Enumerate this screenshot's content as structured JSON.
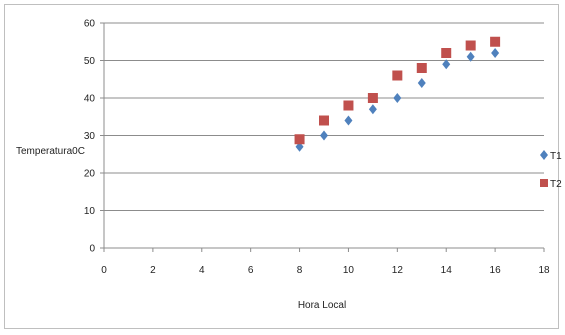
{
  "chart_data": {
    "type": "scatter",
    "title": "",
    "xlabel": "Hora Local",
    "ylabel": "Temperatura0C",
    "xlim": [
      0,
      18
    ],
    "ylim": [
      0,
      60
    ],
    "xticks": [
      0,
      2,
      4,
      6,
      8,
      10,
      12,
      14,
      16,
      18
    ],
    "yticks": [
      0,
      10,
      20,
      30,
      40,
      50,
      60
    ],
    "grid": "horizontal",
    "legend_position": "right",
    "series": [
      {
        "name": "T1",
        "marker": "diamond",
        "color": "#4f81bd",
        "x": [
          8,
          9,
          10,
          11,
          12,
          13,
          14,
          15,
          16
        ],
        "y": [
          27,
          30,
          34,
          37,
          40,
          44,
          49,
          51,
          52
        ]
      },
      {
        "name": "T2",
        "marker": "square",
        "color": "#c0504d",
        "x": [
          8,
          9,
          10,
          11,
          12,
          13,
          14,
          15,
          16
        ],
        "y": [
          29,
          34,
          38,
          40,
          46,
          48,
          52,
          54,
          55
        ]
      }
    ]
  }
}
